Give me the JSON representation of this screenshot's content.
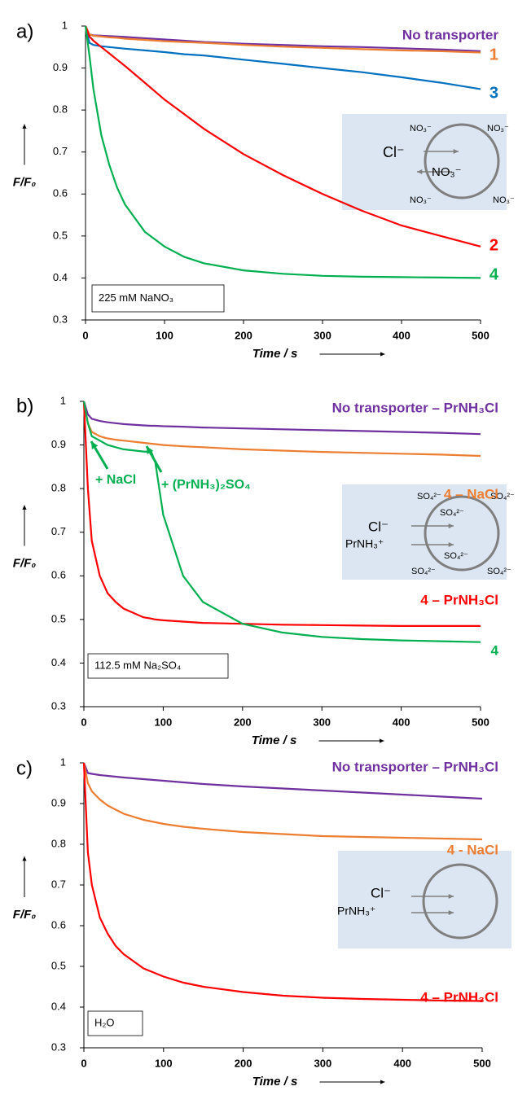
{
  "chart_data": [
    {
      "type": "line",
      "panel_label": "a)",
      "ylabel": "F/F₀",
      "xlabel": "Time / s",
      "xlim": [
        0,
        500
      ],
      "ylim": [
        0.3,
        1
      ],
      "xticks": [
        0,
        100,
        200,
        300,
        400,
        500
      ],
      "yticks": [
        0.3,
        0.4,
        0.5,
        0.6,
        0.7,
        0.8,
        0.9,
        1
      ],
      "x": [
        0,
        5,
        10,
        20,
        30,
        40,
        50,
        75,
        100,
        125,
        150,
        200,
        250,
        300,
        350,
        400,
        450,
        500
      ],
      "series": [
        {
          "name": "No transporter",
          "color": "#7030a0",
          "values": [
            1,
            0.98,
            0.978,
            0.977,
            0.976,
            0.975,
            0.974,
            0.971,
            0.968,
            0.965,
            0.962,
            0.958,
            0.955,
            0.952,
            0.95,
            0.947,
            0.944,
            0.94
          ]
        },
        {
          "name": "1",
          "color": "#ed7d31",
          "values": [
            1,
            0.98,
            0.977,
            0.975,
            0.973,
            0.972,
            0.97,
            0.967,
            0.964,
            0.962,
            0.96,
            0.955,
            0.951,
            0.948,
            0.945,
            0.942,
            0.94,
            0.937
          ]
        },
        {
          "name": "3",
          "color": "#0070c0",
          "values": [
            1,
            0.96,
            0.955,
            0.952,
            0.95,
            0.948,
            0.946,
            0.942,
            0.938,
            0.933,
            0.93,
            0.92,
            0.91,
            0.9,
            0.89,
            0.878,
            0.865,
            0.85
          ]
        },
        {
          "name": "2",
          "color": "#ff0000",
          "values": [
            1,
            0.975,
            0.965,
            0.95,
            0.935,
            0.92,
            0.905,
            0.865,
            0.825,
            0.79,
            0.755,
            0.695,
            0.645,
            0.6,
            0.56,
            0.525,
            0.5,
            0.475
          ]
        },
        {
          "name": "4",
          "color": "#00b050",
          "values": [
            1,
            0.93,
            0.85,
            0.74,
            0.67,
            0.615,
            0.575,
            0.51,
            0.475,
            0.45,
            0.435,
            0.418,
            0.41,
            0.405,
            0.403,
            0.402,
            0.401,
            0.4
          ]
        }
      ],
      "note": "225 mM NaNO₃",
      "inset_labels": [
        "NO₃⁻",
        "NO₃⁻",
        "NO₃⁻",
        "NO₃⁻",
        "Cl⁻",
        "NO₃⁻"
      ]
    },
    {
      "type": "line",
      "panel_label": "b)",
      "ylabel": "F/F₀",
      "xlabel": "Time / s",
      "xlim": [
        0,
        500
      ],
      "ylim": [
        0.3,
        1
      ],
      "xticks": [
        0,
        100,
        200,
        300,
        400,
        500
      ],
      "yticks": [
        0.3,
        0.4,
        0.5,
        0.6,
        0.7,
        0.8,
        0.9,
        1
      ],
      "x": [
        0,
        5,
        10,
        20,
        30,
        40,
        50,
        75,
        85,
        90,
        100,
        125,
        150,
        200,
        250,
        300,
        350,
        400,
        450,
        500
      ],
      "series": [
        {
          "name": "No transporter – PrNH₃Cl",
          "color": "#7030a0",
          "values": [
            1,
            0.97,
            0.96,
            0.955,
            0.952,
            0.95,
            0.948,
            0.945,
            0.944,
            0.944,
            0.943,
            0.942,
            0.94,
            0.938,
            0.936,
            0.934,
            0.932,
            0.93,
            0.928,
            0.925
          ]
        },
        {
          "name": "4 – NaCl",
          "color": "#ed7d31",
          "values": [
            1,
            0.95,
            0.93,
            0.92,
            0.915,
            0.912,
            0.91,
            0.905,
            0.903,
            0.902,
            0.9,
            0.897,
            0.895,
            0.89,
            0.887,
            0.884,
            0.882,
            0.88,
            0.878,
            0.875
          ]
        },
        {
          "name": "4 – PrNH₃Cl",
          "color": "#ff0000",
          "values": [
            1,
            0.8,
            0.68,
            0.6,
            0.56,
            0.54,
            0.525,
            0.505,
            0.502,
            0.5,
            0.498,
            0.495,
            0.492,
            0.49,
            0.488,
            0.487,
            0.486,
            0.485,
            0.485,
            0.485
          ]
        },
        {
          "name": "4",
          "color": "#00b050",
          "values": [
            1,
            0.95,
            0.92,
            0.91,
            0.9,
            0.895,
            0.89,
            0.885,
            0.884,
            0.86,
            0.74,
            0.6,
            0.54,
            0.49,
            0.47,
            0.46,
            0.455,
            0.452,
            0.45,
            0.448
          ]
        }
      ],
      "annotations": [
        "+ NaCl",
        "+ (PrNH₃)₂SO₄"
      ],
      "note": "112.5 mM Na₂SO₄",
      "inset_labels": [
        "SO₄²⁻",
        "SO₄²⁻",
        "SO₄²⁻",
        "SO₄²⁻",
        "SO₄²⁻",
        "SO₄²⁻",
        "Cl⁻",
        "PrNH₃⁺"
      ]
    },
    {
      "type": "line",
      "panel_label": "c)",
      "ylabel": "F/F₀",
      "xlabel": "Time / s",
      "xlim": [
        0,
        500
      ],
      "ylim": [
        0.3,
        1
      ],
      "xticks": [
        0,
        100,
        200,
        300,
        400,
        500
      ],
      "yticks": [
        0.3,
        0.4,
        0.5,
        0.6,
        0.7,
        0.8,
        0.9,
        1
      ],
      "x": [
        0,
        5,
        10,
        20,
        30,
        40,
        50,
        75,
        100,
        125,
        150,
        200,
        250,
        300,
        350,
        400,
        450,
        500
      ],
      "series": [
        {
          "name": "No transporter – PrNH₃Cl",
          "color": "#7030a0",
          "values": [
            1,
            0.975,
            0.973,
            0.97,
            0.968,
            0.966,
            0.964,
            0.96,
            0.956,
            0.952,
            0.948,
            0.942,
            0.937,
            0.932,
            0.927,
            0.922,
            0.917,
            0.912
          ]
        },
        {
          "name": "4 - NaCl",
          "color": "#ed7d31",
          "values": [
            1,
            0.95,
            0.93,
            0.91,
            0.895,
            0.885,
            0.875,
            0.86,
            0.85,
            0.843,
            0.838,
            0.83,
            0.825,
            0.82,
            0.818,
            0.816,
            0.814,
            0.812
          ]
        },
        {
          "name": "4 – PrNH₃Cl",
          "color": "#ff0000",
          "values": [
            1,
            0.78,
            0.7,
            0.62,
            0.58,
            0.55,
            0.53,
            0.495,
            0.475,
            0.46,
            0.45,
            0.437,
            0.428,
            0.423,
            0.42,
            0.418,
            0.416,
            0.415
          ]
        }
      ],
      "note": "H₂O",
      "inset_labels": [
        "Cl⁻",
        "PrNH₃⁺"
      ]
    }
  ]
}
